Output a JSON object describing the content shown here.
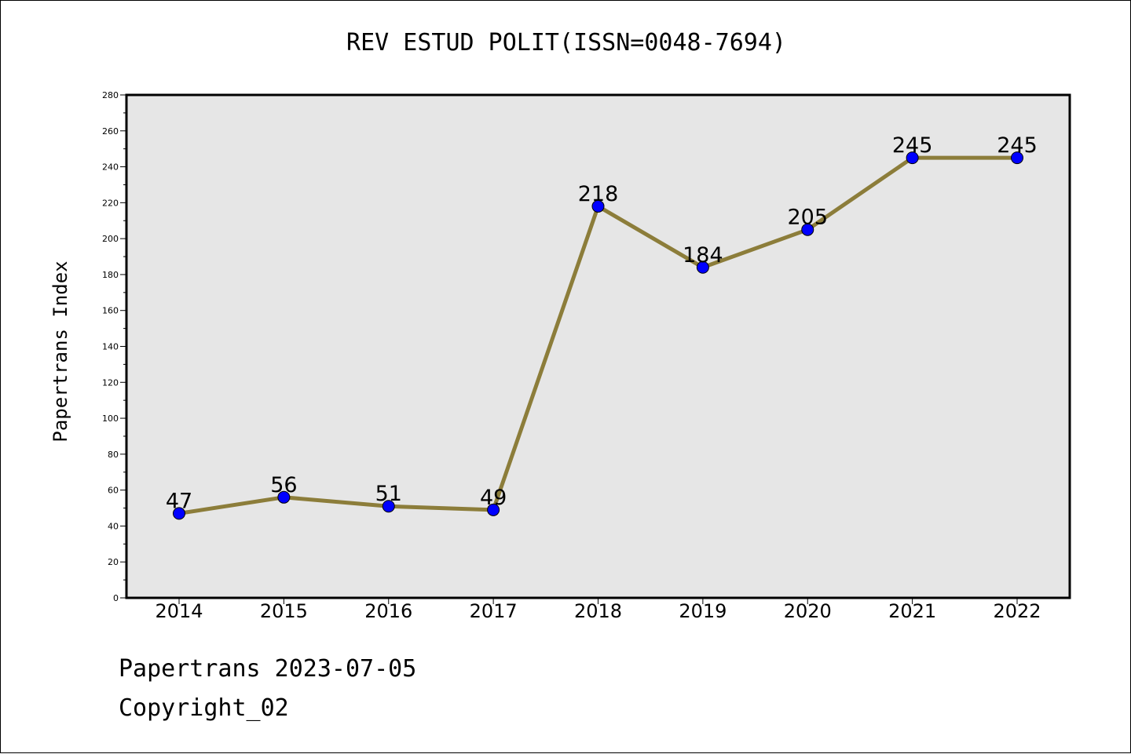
{
  "chart_data": {
    "type": "line",
    "title": "REV ESTUD POLIT(ISSN=0048-7694)",
    "xlabel": "",
    "ylabel": "Papertrans Index",
    "categories": [
      "2014",
      "2015",
      "2016",
      "2017",
      "2018",
      "2019",
      "2020",
      "2021",
      "2022"
    ],
    "series": [
      {
        "values": [
          47,
          56,
          51,
          49,
          218,
          184,
          205,
          245,
          245
        ]
      }
    ],
    "data_labels": [
      "47",
      "56",
      "51",
      "49",
      "218",
      "184",
      "205",
      "245",
      "245"
    ],
    "ylim": [
      0,
      280
    ],
    "yticks": [
      0,
      20,
      40,
      60,
      80,
      100,
      120,
      140,
      160,
      180,
      200,
      220,
      240,
      260,
      280
    ],
    "grid": false,
    "colors": {
      "line": "#8c7d3a",
      "marker": "#0000ff",
      "plot_bg": "#e6e6e6"
    }
  },
  "footer": {
    "date": "Papertrans 2023-07-05",
    "copyright": "Copyright_02"
  }
}
